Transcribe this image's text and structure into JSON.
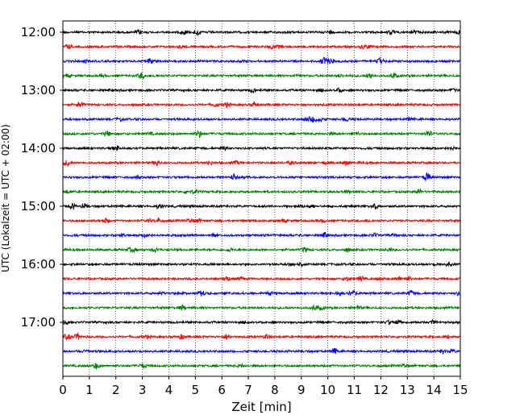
{
  "chart_data": {
    "type": "line",
    "title": "",
    "xlabel": "Zeit  [min]",
    "ylabel": "UTC (Lokalzeit = UTC + 02:00)",
    "xlim": [
      0,
      15
    ],
    "x_ticks": [
      0,
      1,
      2,
      3,
      4,
      5,
      6,
      7,
      8,
      9,
      10,
      11,
      12,
      13,
      14,
      15
    ],
    "x_tick_labels": [
      "0",
      "1",
      "2",
      "3",
      "4",
      "5",
      "6",
      "7",
      "8",
      "9",
      "10",
      "11",
      "12",
      "13",
      "14",
      "15"
    ],
    "y_tick_labels": [
      "12:00",
      "13:00",
      "14:00",
      "15:00",
      "16:00",
      "17:00"
    ],
    "vertical_grid": true,
    "grid_style": "dotted",
    "trace_interval_min": 15,
    "trace_colors": [
      "#000000",
      "#ff0000",
      "#0000ff",
      "#008000"
    ],
    "traces": [
      {
        "start": "12:00",
        "color": "#000000"
      },
      {
        "start": "12:15",
        "color": "#ff0000"
      },
      {
        "start": "12:30",
        "color": "#0000ff"
      },
      {
        "start": "12:45",
        "color": "#008000"
      },
      {
        "start": "13:00",
        "color": "#000000"
      },
      {
        "start": "13:15",
        "color": "#ff0000"
      },
      {
        "start": "13:30",
        "color": "#0000ff"
      },
      {
        "start": "13:45",
        "color": "#008000"
      },
      {
        "start": "14:00",
        "color": "#000000"
      },
      {
        "start": "14:15",
        "color": "#ff0000"
      },
      {
        "start": "14:30",
        "color": "#0000ff"
      },
      {
        "start": "14:45",
        "color": "#008000"
      },
      {
        "start": "15:00",
        "color": "#000000"
      },
      {
        "start": "15:15",
        "color": "#ff0000"
      },
      {
        "start": "15:30",
        "color": "#0000ff"
      },
      {
        "start": "15:45",
        "color": "#008000"
      },
      {
        "start": "16:00",
        "color": "#000000"
      },
      {
        "start": "16:15",
        "color": "#ff0000"
      },
      {
        "start": "16:30",
        "color": "#0000ff"
      },
      {
        "start": "16:45",
        "color": "#008000"
      },
      {
        "start": "17:00",
        "color": "#000000"
      },
      {
        "start": "17:15",
        "color": "#ff0000"
      },
      {
        "start": "17:30",
        "color": "#0000ff"
      },
      {
        "start": "17:45",
        "color": "#008000"
      }
    ]
  }
}
